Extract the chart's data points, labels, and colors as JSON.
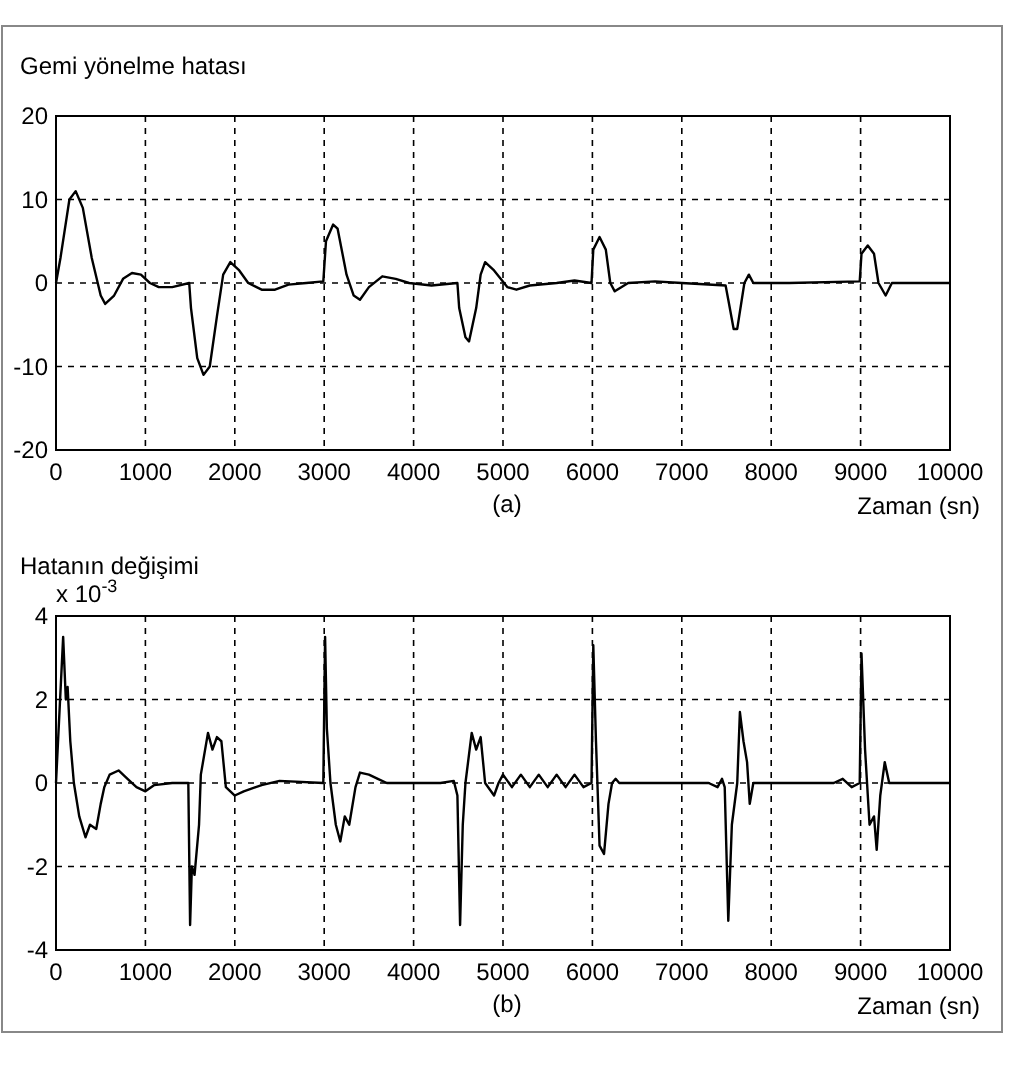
{
  "chart_data": [
    {
      "type": "line",
      "title": "Gemi yönelme hatası",
      "xlabel": "Zaman (sn)",
      "annotations": [
        "(a)"
      ],
      "series": [
        {
          "color": "#000000",
          "x": [
            0,
            50,
            150,
            220,
            300,
            400,
            500,
            550,
            650,
            750,
            850,
            950,
            1050,
            1150,
            1300,
            1490,
            1510,
            1580,
            1650,
            1720,
            1800,
            1870,
            1950,
            2050,
            2150,
            2300,
            2450,
            2600,
            2800,
            2990,
            3020,
            3100,
            3150,
            3250,
            3330,
            3400,
            3500,
            3650,
            3800,
            3950,
            4200,
            4490,
            4510,
            4580,
            4620,
            4700,
            4750,
            4800,
            4900,
            5050,
            5150,
            5300,
            5600,
            5800,
            5990,
            6010,
            6080,
            6150,
            6200,
            6250,
            6400,
            6700,
            7000,
            7490,
            7520,
            7580,
            7620,
            7700,
            7750,
            7800,
            8200,
            8990,
            9010,
            9080,
            9150,
            9200,
            9280,
            9350,
            10000
          ],
          "values": [
            0,
            3,
            10,
            11,
            9,
            3,
            -1.5,
            -2.5,
            -1.5,
            0.5,
            1.2,
            1,
            0,
            -0.5,
            -0.5,
            0,
            -3,
            -9,
            -11,
            -10,
            -4,
            1,
            2.5,
            1.5,
            0,
            -0.8,
            -0.8,
            -0.2,
            0,
            0.2,
            5,
            7,
            6.5,
            1,
            -1.5,
            -2,
            -0.5,
            0.8,
            0.5,
            0,
            -0.3,
            0,
            -3,
            -6.5,
            -7,
            -3,
            1,
            2.5,
            1.5,
            -0.5,
            -0.8,
            -0.3,
            0,
            0.3,
            0,
            4,
            5.5,
            4,
            0,
            -1,
            0,
            0.2,
            0,
            -0.3,
            -2,
            -5.5,
            -5.5,
            0,
            1,
            0,
            0,
            0.2,
            3.5,
            4.5,
            3.5,
            0,
            -1.5,
            0,
            0
          ]
        }
      ],
      "xlim": [
        0,
        10000
      ],
      "xticks": [
        0,
        1000,
        2000,
        3000,
        4000,
        5000,
        6000,
        7000,
        8000,
        9000,
        10000
      ],
      "ylim": [
        -20,
        20
      ],
      "yticks": [
        -20,
        -10,
        0,
        10,
        20
      ],
      "grid": true,
      "line_style": "solid"
    },
    {
      "type": "line",
      "title": "Hatanın değişimi",
      "xlabel": "Zaman (sn)",
      "annotations": [
        "x 10$^{-3}$",
        "(b)"
      ],
      "series": [
        {
          "color": "#000000",
          "x": [
            0,
            80,
            110,
            130,
            160,
            200,
            260,
            330,
            380,
            450,
            500,
            540,
            600,
            700,
            800,
            900,
            1000,
            1100,
            1300,
            1480,
            1500,
            1520,
            1550,
            1600,
            1620,
            1700,
            1750,
            1800,
            1850,
            1900,
            2000,
            2100,
            2300,
            2500,
            2990,
            3010,
            3030,
            3070,
            3130,
            3180,
            3230,
            3280,
            3350,
            3400,
            3500,
            3600,
            3700,
            3900,
            4300,
            4450,
            4490,
            4520,
            4550,
            4580,
            4650,
            4700,
            4750,
            4800,
            4900,
            4950,
            5000,
            5100,
            5200,
            5300,
            5400,
            5500,
            5600,
            5700,
            5800,
            5900,
            5990,
            6010,
            6040,
            6080,
            6130,
            6180,
            6220,
            6260,
            6300,
            6500,
            7300,
            7400,
            7450,
            7480,
            7520,
            7560,
            7620,
            7650,
            7690,
            7730,
            7760,
            7800,
            8700,
            8800,
            8900,
            8990,
            9010,
            9050,
            9100,
            9150,
            9180,
            9220,
            9270,
            9320,
            10000
          ],
          "values": [
            0,
            3.5,
            2,
            2.3,
            1,
            0,
            -0.8,
            -1.3,
            -1,
            -1.1,
            -0.5,
            -0.1,
            0.2,
            0.3,
            0.1,
            -0.1,
            -0.2,
            -0.05,
            0,
            0,
            -3.4,
            -2,
            -2.2,
            -1,
            0.2,
            1.2,
            0.8,
            1.1,
            1,
            -0.1,
            -0.3,
            -0.2,
            -0.05,
            0.05,
            0,
            3.5,
            1.3,
            0,
            -1,
            -1.4,
            -0.8,
            -1,
            -0.1,
            0.25,
            0.2,
            0.1,
            0,
            0,
            0,
            0.05,
            -0.3,
            -3.4,
            -1,
            0,
            1.2,
            0.8,
            1.1,
            0,
            -0.3,
            0,
            0.2,
            -0.1,
            0.2,
            -0.1,
            0.2,
            -0.1,
            0.2,
            -0.1,
            0.2,
            -0.1,
            0,
            3.3,
            1,
            -1.5,
            -1.7,
            -0.5,
            0,
            0.1,
            0,
            0,
            0,
            -0.1,
            0.1,
            -0.1,
            -3.3,
            -1,
            0,
            1.7,
            1,
            0.5,
            -0.5,
            0,
            0,
            0.1,
            -0.1,
            0,
            3.1,
            0.8,
            -1,
            -0.8,
            -1.6,
            -0.3,
            0.5,
            0,
            0
          ]
        }
      ],
      "xlim": [
        0,
        10000
      ],
      "xticks": [
        0,
        1000,
        2000,
        3000,
        4000,
        5000,
        6000,
        7000,
        8000,
        9000,
        10000
      ],
      "ylim": [
        -4,
        4
      ],
      "yticks": [
        -4,
        -2,
        0,
        2,
        4
      ],
      "grid": true,
      "line_style": "solid"
    }
  ]
}
